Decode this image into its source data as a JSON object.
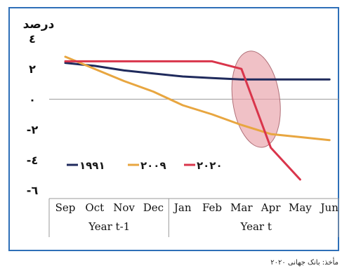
{
  "source_note": "مأخذ: بانک جهانی ۲۰۲۰",
  "chart_data": {
    "type": "line",
    "ylabel": "درصد",
    "ylim": [
      -6,
      4
    ],
    "y_ticks": [
      4,
      2,
      0,
      -2,
      -4,
      -6
    ],
    "y_tick_labels": [
      "٤",
      "٢",
      "٠",
      "-٢",
      "-٤",
      "-٦"
    ],
    "categories": [
      "Sep",
      "Oct",
      "Nov",
      "Dec",
      "Jan",
      "Feb",
      "Mar",
      "Apr",
      "May",
      "Jun"
    ],
    "category_groups": [
      {
        "label": "Year t-1",
        "span": [
          0,
          3
        ]
      },
      {
        "label": "Year t",
        "span": [
          4,
          9
        ]
      }
    ],
    "grid": false,
    "legend_position": "bottom-left inside plot",
    "series": [
      {
        "name": "۱۹۹۱",
        "color": "#1f2a5c",
        "values": [
          2.4,
          2.2,
          1.9,
          1.7,
          1.5,
          1.4,
          1.3,
          1.3,
          1.3,
          1.3
        ]
      },
      {
        "name": "۲۰۰۹",
        "color": "#e8a640",
        "values": [
          2.8,
          2.0,
          1.2,
          0.5,
          -0.4,
          -1.0,
          -1.7,
          -2.3,
          -2.5,
          -2.7
        ]
      },
      {
        "name": "۲۰۲۰",
        "color": "#d9354b",
        "values": [
          2.5,
          2.5,
          2.5,
          2.5,
          2.5,
          2.5,
          2.0,
          -3.2,
          -5.3,
          null
        ]
      }
    ],
    "highlight_ellipse": {
      "x_center": 6.5,
      "y_center": 0.0,
      "x_radius": 0.8,
      "y_radius": 3.2,
      "fill": "#e8a0a8"
    }
  }
}
